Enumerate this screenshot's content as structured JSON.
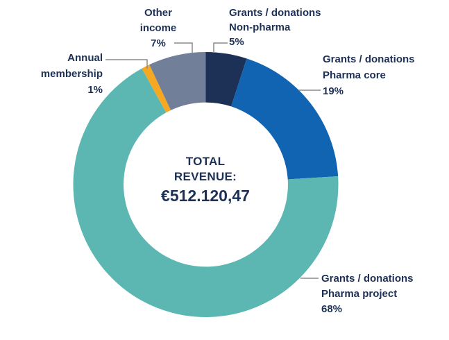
{
  "chart_data": {
    "type": "pie",
    "variant": "donut",
    "title": "",
    "center_label": {
      "line1": "TOTAL",
      "line2": "REVENUE:",
      "value": "€512.120,47"
    },
    "start_angle_deg": 0,
    "direction": "clockwise",
    "inner_radius_ratio": 0.62,
    "segments": [
      {
        "slug": "grants-donations-non-pharma",
        "label_lines": [
          "Grants / donations",
          "Non-pharma"
        ],
        "value_pct": 5,
        "pct_label": "5%",
        "color": "#1d3156"
      },
      {
        "slug": "grants-donations-pharma-core",
        "label_lines": [
          "Grants / donations",
          "Pharma core"
        ],
        "value_pct": 19,
        "pct_label": "19%",
        "color": "#1164b2"
      },
      {
        "slug": "grants-donations-pharma-project",
        "label_lines": [
          "Grants / donations",
          "Pharma project"
        ],
        "value_pct": 68,
        "pct_label": "68%",
        "color": "#5cb7b2"
      },
      {
        "slug": "annual-membership",
        "label_lines": [
          "Annual",
          "membership"
        ],
        "value_pct": 1,
        "pct_label": "1%",
        "color": "#f7a823"
      },
      {
        "slug": "other-income",
        "label_lines": [
          "Other",
          "income"
        ],
        "value_pct": 7,
        "pct_label": "7%",
        "color": "#727f99"
      }
    ],
    "leader_line_color": "#8a8a8a",
    "text_color": "#1d3156",
    "background": "#ffffff"
  }
}
